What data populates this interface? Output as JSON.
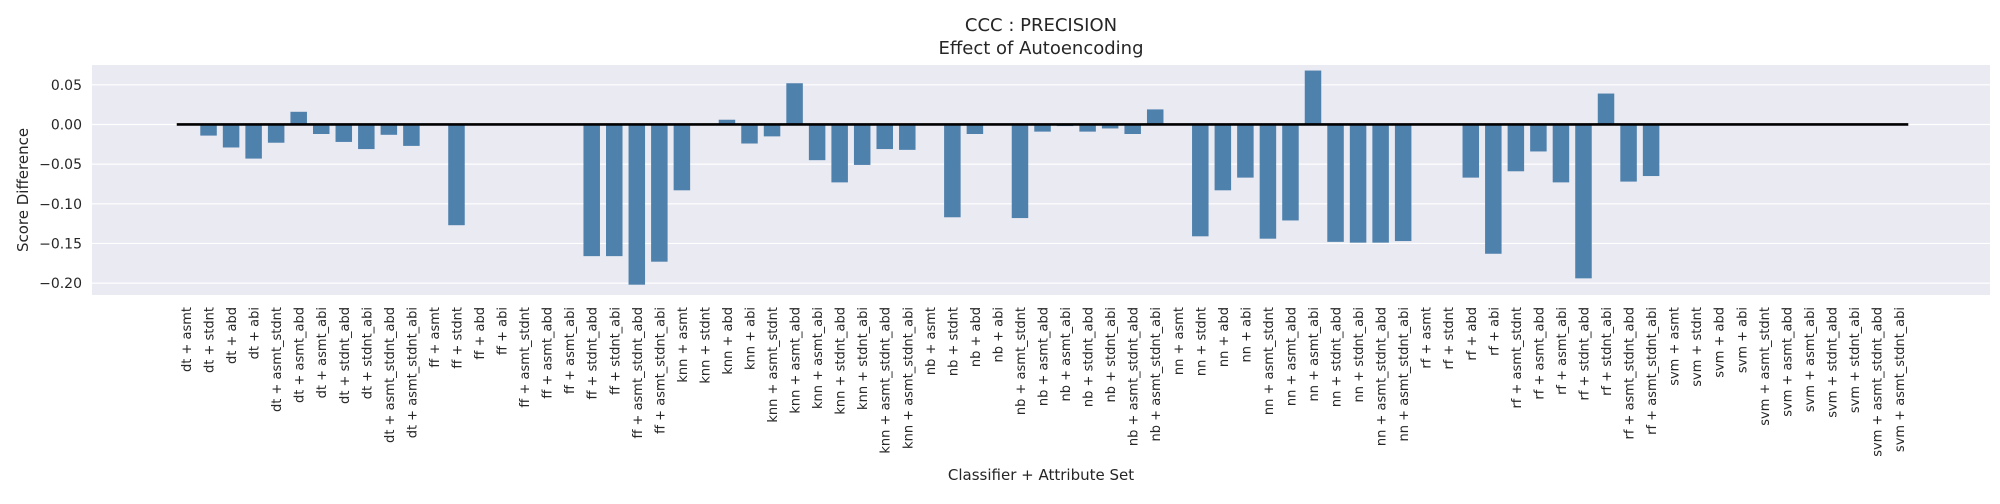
{
  "chart_data": {
    "type": "bar",
    "title": "CCC : PRECISION",
    "subtitle": "Effect of Autoencoding",
    "xlabel": "Classifier + Attribute Set",
    "ylabel": "Score Difference",
    "ylim": [
      -0.215,
      0.075
    ],
    "yticks": [
      0.05,
      0.0,
      -0.05,
      -0.1,
      -0.15,
      -0.2
    ],
    "ytick_labels": [
      "0.05",
      "0.00",
      "−0.05",
      "−0.10",
      "−0.15",
      "−0.20"
    ],
    "grid": true,
    "bar_color": "#4f81ad",
    "background_color": "#eaeaf2",
    "baseline": 0,
    "categories": [
      "dt + asmt",
      "dt + stdnt",
      "dt + abd",
      "dt + abi",
      "dt + asmt_stdnt",
      "dt + asmt_abd",
      "dt + asmt_abi",
      "dt + stdnt_abd",
      "dt + stdnt_abi",
      "dt + asmt_stdnt_abd",
      "dt + asmt_stdnt_abi",
      "ff + asmt",
      "ff + stdnt",
      "ff + abd",
      "ff + abi",
      "ff + asmt_stdnt",
      "ff + asmt_abd",
      "ff + asmt_abi",
      "ff + stdnt_abd",
      "ff + stdnt_abi",
      "ff + asmt_stdnt_abd",
      "ff + asmt_stdnt_abi",
      "knn + asmt",
      "knn + stdnt",
      "knn + abd",
      "knn + abi",
      "knn + asmt_stdnt",
      "knn + asmt_abd",
      "knn + asmt_abi",
      "knn + stdnt_abd",
      "knn + stdnt_abi",
      "knn + asmt_stdnt_abd",
      "knn + asmt_stdnt_abi",
      "nb + asmt",
      "nb + stdnt",
      "nb + abd",
      "nb + abi",
      "nb + asmt_stdnt",
      "nb + asmt_abd",
      "nb + asmt_abi",
      "nb + stdnt_abd",
      "nb + stdnt_abi",
      "nb + asmt_stdnt_abd",
      "nb + asmt_stdnt_abi",
      "nn + asmt",
      "nn + stdnt",
      "nn + abd",
      "nn + abi",
      "nn + asmt_stdnt",
      "nn + asmt_abd",
      "nn + asmt_abi",
      "nn + stdnt_abd",
      "nn + stdnt_abi",
      "nn + asmt_stdnt_abd",
      "nn + asmt_stdnt_abi",
      "rf + asmt",
      "rf + stdnt",
      "rf + abd",
      "rf + abi",
      "rf + asmt_stdnt",
      "rf + asmt_abd",
      "rf + asmt_abi",
      "rf + stdnt_abd",
      "rf + stdnt_abi",
      "rf + asmt_stdnt_abd",
      "rf + asmt_stdnt_abi",
      "svm + asmt",
      "svm + stdnt",
      "svm + abd",
      "svm + abi",
      "svm + asmt_stdnt",
      "svm + asmt_abd",
      "svm + asmt_abi",
      "svm + stdnt_abd",
      "svm + stdnt_abi",
      "svm + asmt_stdnt_abd",
      "svm + asmt_stdnt_abi"
    ],
    "values": [
      0,
      -0.014,
      -0.029,
      -0.043,
      -0.023,
      0.016,
      -0.012,
      -0.022,
      -0.031,
      -0.013,
      -0.027,
      0,
      -0.127,
      0,
      0,
      0,
      0,
      0,
      -0.166,
      -0.166,
      -0.202,
      -0.173,
      -0.083,
      0,
      0.006,
      -0.024,
      -0.015,
      0.052,
      -0.045,
      -0.073,
      -0.051,
      -0.031,
      -0.032,
      0,
      -0.117,
      -0.012,
      0,
      -0.118,
      -0.009,
      -0.002,
      -0.009,
      -0.005,
      -0.012,
      0.019,
      0,
      -0.141,
      -0.083,
      -0.067,
      -0.144,
      -0.121,
      0.068,
      -0.148,
      -0.149,
      -0.149,
      -0.147,
      0,
      0,
      -0.067,
      -0.163,
      -0.059,
      -0.034,
      -0.073,
      -0.194,
      0.039,
      -0.072,
      -0.065,
      0,
      0,
      0,
      0,
      0,
      0,
      0,
      0,
      0,
      0,
      0
    ]
  }
}
